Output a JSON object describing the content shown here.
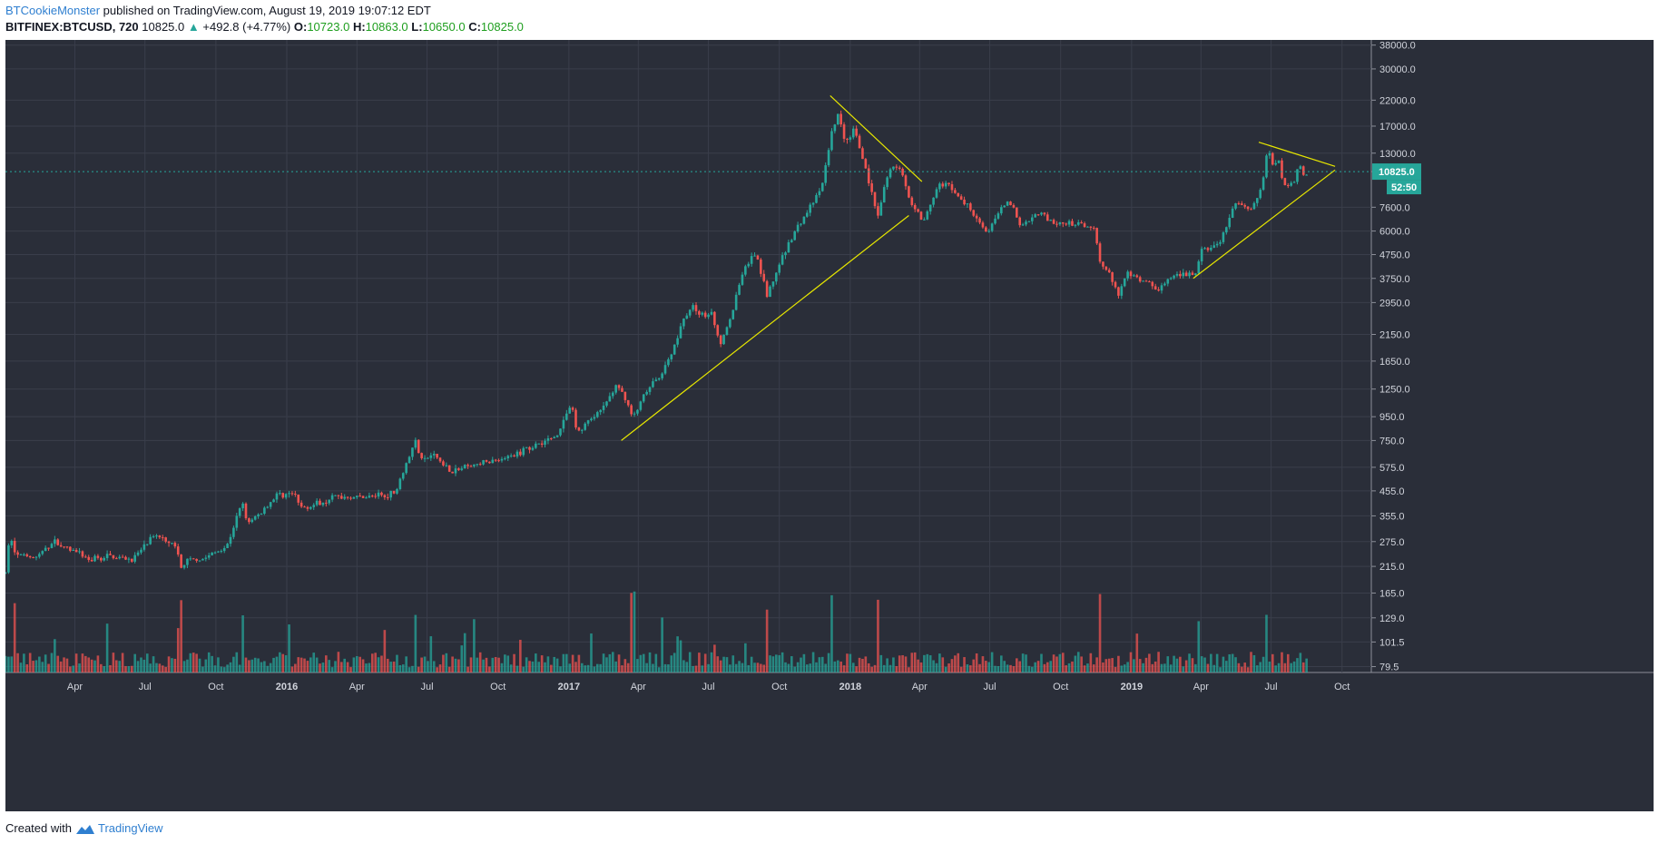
{
  "header": {
    "author": "BTCookieMonster",
    "published": "published on TradingView.com, August 19, 2019 19:07:12 EDT",
    "symbol": "BITFINEX:BTCUSD, 720",
    "last": "10825.0",
    "change": "+492.8 (+4.77%)",
    "o_label": "O:",
    "o_value": "10723.0",
    "h_label": "H:",
    "h_value": "10863.0",
    "l_label": "L:",
    "l_value": "10650.0",
    "c_label": "C:",
    "c_value": "10825.0",
    "up_arrow_icon": "triangle-up-icon"
  },
  "footer": {
    "created_with": "Created with",
    "brand": "TradingView",
    "logo_icon": "tradingview-logo-icon"
  },
  "price_badge": {
    "price": "10825.0",
    "countdown": "52:50"
  },
  "colors": {
    "background": "#2a2e39",
    "grid": "#3a3e4b",
    "up": "#26a69a",
    "down": "#ef5350",
    "trendline": "#e6e600",
    "badge": "#26a69a",
    "axis_text": "#d1d4dc"
  },
  "chart_data": {
    "type": "candlestick",
    "symbol": "BITFINEX:BTCUSD",
    "interval": "720",
    "y_scale": "log",
    "ylim": [
      75,
      40000
    ],
    "xlim": [
      "2015-01-01",
      "2019-11-08"
    ],
    "grid": true,
    "legend": "none",
    "y_ticks": [
      38000,
      30000,
      22000,
      17000,
      13000,
      10825,
      7600,
      6000,
      4750,
      3750,
      2950,
      2150,
      1650,
      1250,
      950,
      750,
      575,
      455,
      355,
      275,
      215,
      165,
      129,
      101.5,
      79.5
    ],
    "y_tick_labels": [
      "38000.0",
      "30000.0",
      "22000.0",
      "17000.0",
      "13000.0",
      "10825.0",
      "7600.0",
      "6000.0",
      "4750.0",
      "3750.0",
      "2950.0",
      "2150.0",
      "1650.0",
      "1250.0",
      "950.0",
      "750.0",
      "575.0",
      "455.0",
      "355.0",
      "275.0",
      "215.0",
      "165.0",
      "129.0",
      "101.5",
      "79.5"
    ],
    "x_ticks": [
      "2015-04-01",
      "2015-07-01",
      "2015-10-01",
      "2016-01-01",
      "2016-04-01",
      "2016-07-01",
      "2016-10-01",
      "2017-01-01",
      "2017-04-01",
      "2017-07-01",
      "2017-10-01",
      "2018-01-01",
      "2018-04-01",
      "2018-07-01",
      "2018-10-01",
      "2019-01-01",
      "2019-04-01",
      "2019-07-01",
      "2019-10-01"
    ],
    "x_tick_labels": [
      "Apr",
      "Jul",
      "Oct",
      "2016",
      "Apr",
      "Jul",
      "Oct",
      "2017",
      "Apr",
      "Jul",
      "Oct",
      "2018",
      "Apr",
      "Jul",
      "Oct",
      "2019",
      "Apr",
      "Jul",
      "Oct"
    ],
    "price_path": [
      [
        "2015-01-01",
        200
      ],
      [
        "2015-01-07",
        300
      ],
      [
        "2015-01-14",
        240
      ],
      [
        "2015-02-10",
        235
      ],
      [
        "2015-03-05",
        275
      ],
      [
        "2015-03-25",
        255
      ],
      [
        "2015-04-20",
        230
      ],
      [
        "2015-05-15",
        238
      ],
      [
        "2015-06-15",
        230
      ],
      [
        "2015-07-10",
        285
      ],
      [
        "2015-07-25",
        290
      ],
      [
        "2015-08-10",
        262
      ],
      [
        "2015-08-18",
        205
      ],
      [
        "2015-08-25",
        228
      ],
      [
        "2015-09-15",
        232
      ],
      [
        "2015-10-15",
        262
      ],
      [
        "2015-11-04",
        405
      ],
      [
        "2015-11-12",
        325
      ],
      [
        "2015-12-01",
        375
      ],
      [
        "2015-12-20",
        440
      ],
      [
        "2016-01-10",
        440
      ],
      [
        "2016-01-20",
        385
      ],
      [
        "2016-02-15",
        405
      ],
      [
        "2016-03-01",
        430
      ],
      [
        "2016-04-15",
        428
      ],
      [
        "2016-05-20",
        445
      ],
      [
        "2016-05-28",
        525
      ],
      [
        "2016-06-17",
        760
      ],
      [
        "2016-06-22",
        610
      ],
      [
        "2016-07-10",
        650
      ],
      [
        "2016-08-02",
        550
      ],
      [
        "2016-08-20",
        575
      ],
      [
        "2016-09-15",
        605
      ],
      [
        "2016-10-15",
        635
      ],
      [
        "2016-11-15",
        710
      ],
      [
        "2016-12-15",
        780
      ],
      [
        "2017-01-04",
        1080
      ],
      [
        "2017-01-11",
        810
      ],
      [
        "2017-01-25",
        900
      ],
      [
        "2017-02-10",
        990
      ],
      [
        "2017-03-03",
        1280
      ],
      [
        "2017-03-15",
        1150
      ],
      [
        "2017-03-25",
        930
      ],
      [
        "2017-04-10",
        1200
      ],
      [
        "2017-05-01",
        1450
      ],
      [
        "2017-05-15",
        1800
      ],
      [
        "2017-05-25",
        2300
      ],
      [
        "2017-06-10",
        2900
      ],
      [
        "2017-06-20",
        2600
      ],
      [
        "2017-07-05",
        2600
      ],
      [
        "2017-07-16",
        1950
      ],
      [
        "2017-08-01",
        2700
      ],
      [
        "2017-08-15",
        4100
      ],
      [
        "2017-09-01",
        4800
      ],
      [
        "2017-09-15",
        3150
      ],
      [
        "2017-10-01",
        4300
      ],
      [
        "2017-10-20",
        5900
      ],
      [
        "2017-11-08",
        7400
      ],
      [
        "2017-11-25",
        9200
      ],
      [
        "2017-12-07",
        15500
      ],
      [
        "2017-12-17",
        19600
      ],
      [
        "2017-12-25",
        14000
      ],
      [
        "2018-01-06",
        16800
      ],
      [
        "2018-01-20",
        11500
      ],
      [
        "2018-02-06",
        6800
      ],
      [
        "2018-02-20",
        11300
      ],
      [
        "2018-03-05",
        11400
      ],
      [
        "2018-03-20",
        8100
      ],
      [
        "2018-04-06",
        6700
      ],
      [
        "2018-04-25",
        9300
      ],
      [
        "2018-05-05",
        9800
      ],
      [
        "2018-05-20",
        8400
      ],
      [
        "2018-06-05",
        7600
      ],
      [
        "2018-06-28",
        5900
      ],
      [
        "2018-07-25",
        8300
      ],
      [
        "2018-08-10",
        6300
      ],
      [
        "2018-09-05",
        7300
      ],
      [
        "2018-09-20",
        6400
      ],
      [
        "2018-10-20",
        6450
      ],
      [
        "2018-11-14",
        6300
      ],
      [
        "2018-11-20",
        4400
      ],
      [
        "2018-12-01",
        4100
      ],
      [
        "2018-12-15",
        3200
      ],
      [
        "2018-12-25",
        4000
      ],
      [
        "2019-01-10",
        3700
      ],
      [
        "2019-02-05",
        3400
      ],
      [
        "2019-02-25",
        3800
      ],
      [
        "2019-03-25",
        3950
      ],
      [
        "2019-04-02",
        4900
      ],
      [
        "2019-04-25",
        5300
      ],
      [
        "2019-05-15",
        7800
      ],
      [
        "2019-06-05",
        7600
      ],
      [
        "2019-06-20",
        9400
      ],
      [
        "2019-06-26",
        13800
      ],
      [
        "2019-07-05",
        11000
      ],
      [
        "2019-07-10",
        12800
      ],
      [
        "2019-07-17",
        9400
      ],
      [
        "2019-08-01",
        10100
      ],
      [
        "2019-08-06",
        12000
      ],
      [
        "2019-08-14",
        10200
      ],
      [
        "2019-08-19",
        10825
      ]
    ],
    "trendlines": [
      {
        "from": [
          "2017-12-06",
          23000
        ],
        "to": [
          "2018-04-04",
          9800
        ]
      },
      {
        "from": [
          "2017-03-10",
          750
        ],
        "to": [
          "2018-03-18",
          7000
        ]
      },
      {
        "from": [
          "2019-06-15",
          14500
        ],
        "to": [
          "2019-09-22",
          11400
        ]
      },
      {
        "from": [
          "2019-03-22",
          3750
        ],
        "to": [
          "2019-09-22",
          11000
        ]
      }
    ],
    "last_price": 10825,
    "volume": {
      "relative_scale": "0-1",
      "spike_dates": [
        "2015-01-14",
        "2015-08-18",
        "2015-11-04",
        "2016-06-17",
        "2017-03-25",
        "2017-09-15",
        "2017-12-07",
        "2018-02-06",
        "2018-11-20",
        "2019-06-26"
      ]
    }
  }
}
